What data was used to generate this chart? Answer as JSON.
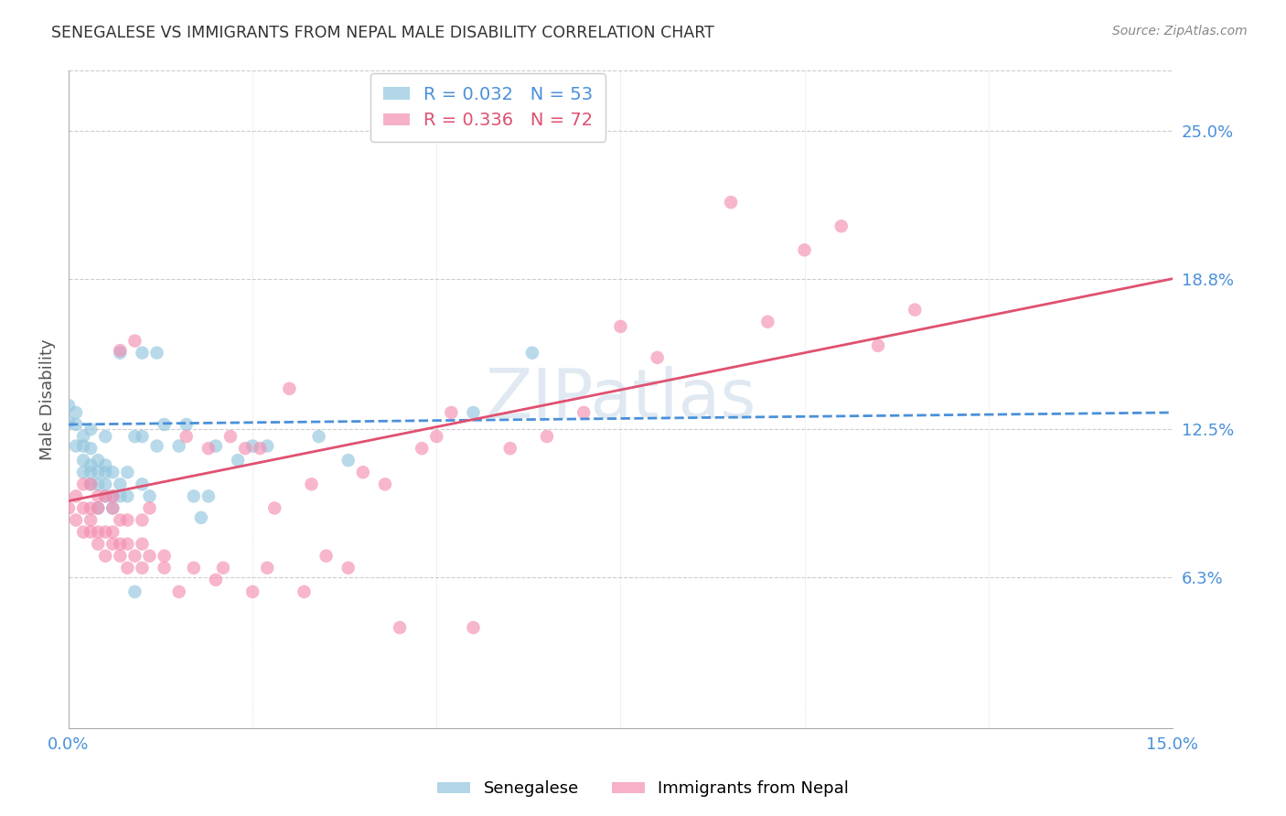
{
  "title": "SENEGALESE VS IMMIGRANTS FROM NEPAL MALE DISABILITY CORRELATION CHART",
  "source": "Source: ZipAtlas.com",
  "ylabel": "Male Disability",
  "xlim": [
    0.0,
    0.15
  ],
  "ylim": [
    0.0,
    0.275
  ],
  "yticks": [
    0.063,
    0.125,
    0.188,
    0.25
  ],
  "ytick_labels": [
    "6.3%",
    "12.5%",
    "18.8%",
    "25.0%"
  ],
  "blue_color": "#92c5de",
  "pink_color": "#f48fb1",
  "trend_blue_color": "#4a90d9",
  "trend_pink_color": "#e05070",
  "watermark_color": "#c8d8e8",
  "title_color": "#333333",
  "tick_label_color": "#4a90d9",
  "grid_color": "#cccccc",
  "background_color": "#ffffff",
  "senegalese_x": [
    0.0,
    0.0,
    0.001,
    0.001,
    0.001,
    0.002,
    0.002,
    0.002,
    0.002,
    0.003,
    0.003,
    0.003,
    0.003,
    0.003,
    0.004,
    0.004,
    0.004,
    0.004,
    0.005,
    0.005,
    0.005,
    0.005,
    0.005,
    0.006,
    0.006,
    0.006,
    0.007,
    0.007,
    0.007,
    0.008,
    0.008,
    0.009,
    0.009,
    0.01,
    0.01,
    0.01,
    0.011,
    0.012,
    0.012,
    0.013,
    0.015,
    0.016,
    0.017,
    0.018,
    0.019,
    0.02,
    0.023,
    0.025,
    0.027,
    0.034,
    0.038,
    0.055,
    0.063
  ],
  "senegalese_y": [
    0.128,
    0.135,
    0.118,
    0.127,
    0.132,
    0.107,
    0.112,
    0.118,
    0.122,
    0.102,
    0.107,
    0.11,
    0.117,
    0.125,
    0.092,
    0.102,
    0.107,
    0.112,
    0.097,
    0.102,
    0.107,
    0.11,
    0.122,
    0.092,
    0.097,
    0.107,
    0.097,
    0.102,
    0.157,
    0.097,
    0.107,
    0.057,
    0.122,
    0.102,
    0.122,
    0.157,
    0.097,
    0.118,
    0.157,
    0.127,
    0.118,
    0.127,
    0.097,
    0.088,
    0.097,
    0.118,
    0.112,
    0.118,
    0.118,
    0.122,
    0.112,
    0.132,
    0.157
  ],
  "nepal_x": [
    0.0,
    0.001,
    0.001,
    0.002,
    0.002,
    0.002,
    0.003,
    0.003,
    0.003,
    0.003,
    0.004,
    0.004,
    0.004,
    0.004,
    0.005,
    0.005,
    0.005,
    0.006,
    0.006,
    0.006,
    0.006,
    0.007,
    0.007,
    0.007,
    0.007,
    0.008,
    0.008,
    0.008,
    0.009,
    0.009,
    0.01,
    0.01,
    0.01,
    0.011,
    0.011,
    0.013,
    0.013,
    0.015,
    0.016,
    0.017,
    0.019,
    0.02,
    0.021,
    0.022,
    0.024,
    0.025,
    0.026,
    0.027,
    0.028,
    0.03,
    0.032,
    0.033,
    0.035,
    0.038,
    0.04,
    0.043,
    0.045,
    0.048,
    0.05,
    0.052,
    0.055,
    0.06,
    0.065,
    0.07,
    0.075,
    0.08,
    0.09,
    0.095,
    0.1,
    0.105,
    0.11,
    0.115
  ],
  "nepal_y": [
    0.092,
    0.087,
    0.097,
    0.082,
    0.092,
    0.102,
    0.082,
    0.087,
    0.092,
    0.102,
    0.077,
    0.082,
    0.092,
    0.097,
    0.072,
    0.082,
    0.097,
    0.077,
    0.082,
    0.092,
    0.097,
    0.072,
    0.077,
    0.087,
    0.158,
    0.067,
    0.077,
    0.087,
    0.072,
    0.162,
    0.067,
    0.077,
    0.087,
    0.072,
    0.092,
    0.067,
    0.072,
    0.057,
    0.122,
    0.067,
    0.117,
    0.062,
    0.067,
    0.122,
    0.117,
    0.057,
    0.117,
    0.067,
    0.092,
    0.142,
    0.057,
    0.102,
    0.072,
    0.067,
    0.107,
    0.102,
    0.042,
    0.117,
    0.122,
    0.132,
    0.042,
    0.117,
    0.122,
    0.132,
    0.168,
    0.155,
    0.22,
    0.17,
    0.2,
    0.21,
    0.16,
    0.175
  ],
  "blue_trend_x": [
    0.0,
    0.15
  ],
  "blue_trend_y": [
    0.127,
    0.132
  ],
  "pink_trend_x": [
    0.0,
    0.15
  ],
  "pink_trend_y": [
    0.095,
    0.188
  ]
}
